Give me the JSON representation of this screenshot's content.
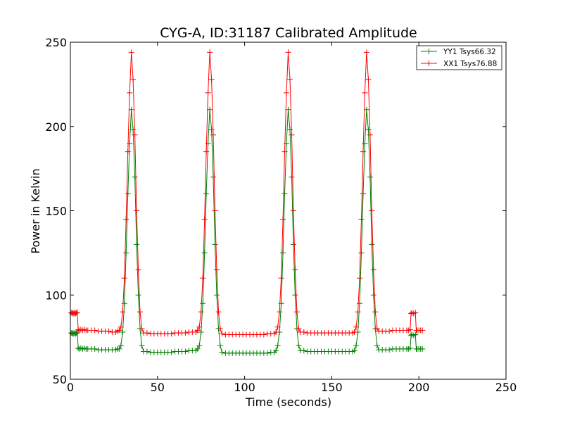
{
  "chart_data": {
    "type": "line",
    "title": "CYG-A, ID:31187 Calibrated Amplitude",
    "xlabel": "Time (seconds)",
    "ylabel": "Power in Kelvin",
    "xlim": [
      0,
      250
    ],
    "ylim": [
      50,
      250
    ],
    "xticks": [
      0,
      50,
      100,
      150,
      200,
      250
    ],
    "yticks": [
      50,
      100,
      150,
      200,
      250
    ],
    "x_tick_labels": [
      "0",
      "50",
      "100",
      "150",
      "200",
      "250"
    ],
    "y_tick_labels": [
      "50",
      "100",
      "150",
      "200",
      "250"
    ],
    "grid": false,
    "legend_position": "top-right",
    "marker": "+",
    "series": [
      {
        "name": "YY1 Tsys66.32",
        "color": "#008000",
        "points": [
          [
            0.5,
            77.5
          ],
          [
            1,
            77
          ],
          [
            1.5,
            77.5
          ],
          [
            2,
            77
          ],
          [
            2.5,
            77.5
          ],
          [
            3,
            77
          ],
          [
            3.5,
            77.5
          ],
          [
            4,
            77.5
          ],
          [
            4.5,
            68.5
          ],
          [
            5,
            68
          ],
          [
            6,
            68.5
          ],
          [
            7,
            68
          ],
          [
            8,
            68.5
          ],
          [
            9,
            68
          ],
          [
            10,
            68
          ],
          [
            12,
            68
          ],
          [
            14,
            68
          ],
          [
            16,
            67.5
          ],
          [
            18,
            67.5
          ],
          [
            20,
            67.5
          ],
          [
            22,
            67.5
          ],
          [
            24,
            67.5
          ],
          [
            26,
            67.5
          ],
          [
            27,
            68
          ],
          [
            28,
            68
          ],
          [
            29,
            70
          ],
          [
            30,
            78
          ],
          [
            31,
            95
          ],
          [
            32,
            125
          ],
          [
            33,
            160
          ],
          [
            34,
            190
          ],
          [
            35,
            210
          ],
          [
            36,
            198
          ],
          [
            37,
            170
          ],
          [
            38,
            130
          ],
          [
            39,
            100
          ],
          [
            40,
            80
          ],
          [
            41,
            70
          ],
          [
            42,
            66.5
          ],
          [
            44,
            66.5
          ],
          [
            46,
            66
          ],
          [
            48,
            66
          ],
          [
            50,
            66
          ],
          [
            52,
            66
          ],
          [
            54,
            66
          ],
          [
            56,
            66
          ],
          [
            58,
            66
          ],
          [
            60,
            66.5
          ],
          [
            62,
            66.5
          ],
          [
            64,
            66.5
          ],
          [
            66,
            66.5
          ],
          [
            68,
            67
          ],
          [
            70,
            67
          ],
          [
            72,
            67
          ],
          [
            73,
            68
          ],
          [
            74,
            70
          ],
          [
            75,
            78
          ],
          [
            76,
            95
          ],
          [
            77,
            125
          ],
          [
            78,
            160
          ],
          [
            79,
            190
          ],
          [
            80,
            210
          ],
          [
            81,
            198
          ],
          [
            82,
            170
          ],
          [
            83,
            130
          ],
          [
            84,
            100
          ],
          [
            85,
            80
          ],
          [
            86,
            70
          ],
          [
            87,
            66
          ],
          [
            89,
            65.5
          ],
          [
            91,
            65.5
          ],
          [
            93,
            65.5
          ],
          [
            95,
            65.5
          ],
          [
            97,
            65.5
          ],
          [
            99,
            65.5
          ],
          [
            101,
            65.5
          ],
          [
            103,
            65.5
          ],
          [
            105,
            65.5
          ],
          [
            107,
            65.5
          ],
          [
            109,
            65.5
          ],
          [
            111,
            65.5
          ],
          [
            113,
            65.5
          ],
          [
            115,
            66
          ],
          [
            117,
            66
          ],
          [
            118,
            67
          ],
          [
            119,
            70
          ],
          [
            120,
            78
          ],
          [
            121,
            95
          ],
          [
            122,
            125
          ],
          [
            123,
            160
          ],
          [
            124,
            190
          ],
          [
            125,
            210
          ],
          [
            126,
            198
          ],
          [
            127,
            170
          ],
          [
            128,
            130
          ],
          [
            129,
            100
          ],
          [
            130,
            80
          ],
          [
            131,
            70
          ],
          [
            132,
            67
          ],
          [
            134,
            67
          ],
          [
            136,
            66.5
          ],
          [
            138,
            66.5
          ],
          [
            140,
            66.5
          ],
          [
            142,
            66.5
          ],
          [
            144,
            66.5
          ],
          [
            146,
            66.5
          ],
          [
            148,
            66.5
          ],
          [
            150,
            66.5
          ],
          [
            152,
            66.5
          ],
          [
            154,
            66.5
          ],
          [
            156,
            66.5
          ],
          [
            158,
            66.5
          ],
          [
            160,
            66.5
          ],
          [
            162,
            66.5
          ],
          [
            163,
            67
          ],
          [
            164,
            70
          ],
          [
            165,
            78
          ],
          [
            166,
            95
          ],
          [
            167,
            125
          ],
          [
            168,
            160
          ],
          [
            169,
            190
          ],
          [
            170,
            210
          ],
          [
            171,
            198
          ],
          [
            172,
            170
          ],
          [
            173,
            130
          ],
          [
            174,
            100
          ],
          [
            175,
            80
          ],
          [
            176,
            70
          ],
          [
            177,
            67.5
          ],
          [
            179,
            67.5
          ],
          [
            181,
            67.5
          ],
          [
            183,
            67.5
          ],
          [
            185,
            68
          ],
          [
            187,
            68
          ],
          [
            189,
            68
          ],
          [
            191,
            68
          ],
          [
            193,
            68
          ],
          [
            194,
            68
          ],
          [
            195,
            68.5
          ],
          [
            195.5,
            76
          ],
          [
            196,
            76.5
          ],
          [
            197,
            76
          ],
          [
            198,
            76.5
          ],
          [
            198.5,
            68
          ],
          [
            199,
            68
          ],
          [
            200,
            68
          ],
          [
            201,
            68
          ],
          [
            202,
            68
          ]
        ]
      },
      {
        "name": "XX1 Tsys76.88",
        "color": "#ff0000",
        "points": [
          [
            0.5,
            89.5
          ],
          [
            1,
            89
          ],
          [
            1.5,
            89.5
          ],
          [
            2,
            89
          ],
          [
            2.5,
            89.5
          ],
          [
            3,
            89
          ],
          [
            3.5,
            89.5
          ],
          [
            4,
            89.5
          ],
          [
            4.5,
            79.5
          ],
          [
            5,
            79
          ],
          [
            6,
            79.5
          ],
          [
            7,
            79
          ],
          [
            8,
            79.5
          ],
          [
            9,
            79
          ],
          [
            10,
            79
          ],
          [
            12,
            79
          ],
          [
            14,
            79
          ],
          [
            16,
            78.5
          ],
          [
            18,
            78.5
          ],
          [
            20,
            78.5
          ],
          [
            22,
            78.5
          ],
          [
            24,
            78
          ],
          [
            26,
            78
          ],
          [
            27,
            78.5
          ],
          [
            28,
            79
          ],
          [
            29,
            81
          ],
          [
            30,
            90
          ],
          [
            31,
            110
          ],
          [
            32,
            145
          ],
          [
            33,
            185
          ],
          [
            34,
            220
          ],
          [
            35,
            244
          ],
          [
            36,
            228
          ],
          [
            37,
            195
          ],
          [
            38,
            150
          ],
          [
            39,
            115
          ],
          [
            40,
            90
          ],
          [
            41,
            80
          ],
          [
            42,
            77.5
          ],
          [
            44,
            77.5
          ],
          [
            46,
            77
          ],
          [
            48,
            77
          ],
          [
            50,
            77
          ],
          [
            52,
            77
          ],
          [
            54,
            77
          ],
          [
            56,
            77
          ],
          [
            58,
            77
          ],
          [
            60,
            77.5
          ],
          [
            62,
            77.5
          ],
          [
            64,
            77.5
          ],
          [
            66,
            77.5
          ],
          [
            68,
            78
          ],
          [
            70,
            78
          ],
          [
            72,
            78
          ],
          [
            73,
            79
          ],
          [
            74,
            81
          ],
          [
            75,
            90
          ],
          [
            76,
            110
          ],
          [
            77,
            145
          ],
          [
            78,
            185
          ],
          [
            79,
            220
          ],
          [
            80,
            244
          ],
          [
            81,
            228
          ],
          [
            82,
            195
          ],
          [
            83,
            150
          ],
          [
            84,
            115
          ],
          [
            85,
            90
          ],
          [
            86,
            80
          ],
          [
            87,
            77
          ],
          [
            89,
            76.5
          ],
          [
            91,
            76.5
          ],
          [
            93,
            76.5
          ],
          [
            95,
            76.5
          ],
          [
            97,
            76.5
          ],
          [
            99,
            76.5
          ],
          [
            101,
            76.5
          ],
          [
            103,
            76.5
          ],
          [
            105,
            76.5
          ],
          [
            107,
            76.5
          ],
          [
            109,
            76.5
          ],
          [
            111,
            76.5
          ],
          [
            113,
            77
          ],
          [
            115,
            77
          ],
          [
            117,
            77
          ],
          [
            118,
            78
          ],
          [
            119,
            81
          ],
          [
            120,
            90
          ],
          [
            121,
            110
          ],
          [
            122,
            145
          ],
          [
            123,
            185
          ],
          [
            124,
            220
          ],
          [
            125,
            244
          ],
          [
            126,
            228
          ],
          [
            127,
            195
          ],
          [
            128,
            150
          ],
          [
            129,
            115
          ],
          [
            130,
            90
          ],
          [
            131,
            80
          ],
          [
            132,
            78
          ],
          [
            134,
            78
          ],
          [
            136,
            77.5
          ],
          [
            138,
            77.5
          ],
          [
            140,
            77.5
          ],
          [
            142,
            77.5
          ],
          [
            144,
            77.5
          ],
          [
            146,
            77.5
          ],
          [
            148,
            77.5
          ],
          [
            150,
            77.5
          ],
          [
            152,
            77.5
          ],
          [
            154,
            77.5
          ],
          [
            156,
            77.5
          ],
          [
            158,
            77.5
          ],
          [
            160,
            77.5
          ],
          [
            162,
            77.5
          ],
          [
            163,
            78
          ],
          [
            164,
            81
          ],
          [
            165,
            90
          ],
          [
            166,
            110
          ],
          [
            167,
            145
          ],
          [
            168,
            185
          ],
          [
            169,
            220
          ],
          [
            170,
            244
          ],
          [
            171,
            228
          ],
          [
            172,
            195
          ],
          [
            173,
            150
          ],
          [
            174,
            115
          ],
          [
            175,
            90
          ],
          [
            176,
            80
          ],
          [
            177,
            78.5
          ],
          [
            179,
            78.5
          ],
          [
            181,
            78.5
          ],
          [
            183,
            78.5
          ],
          [
            185,
            79
          ],
          [
            187,
            79
          ],
          [
            189,
            79
          ],
          [
            191,
            79
          ],
          [
            193,
            79
          ],
          [
            194,
            79
          ],
          [
            195,
            79.5
          ],
          [
            195.5,
            89
          ],
          [
            196,
            89.5
          ],
          [
            197,
            89
          ],
          [
            198,
            89.5
          ],
          [
            198.5,
            79
          ],
          [
            199,
            79
          ],
          [
            200,
            79
          ],
          [
            201,
            79
          ],
          [
            202,
            79
          ]
        ]
      }
    ]
  }
}
